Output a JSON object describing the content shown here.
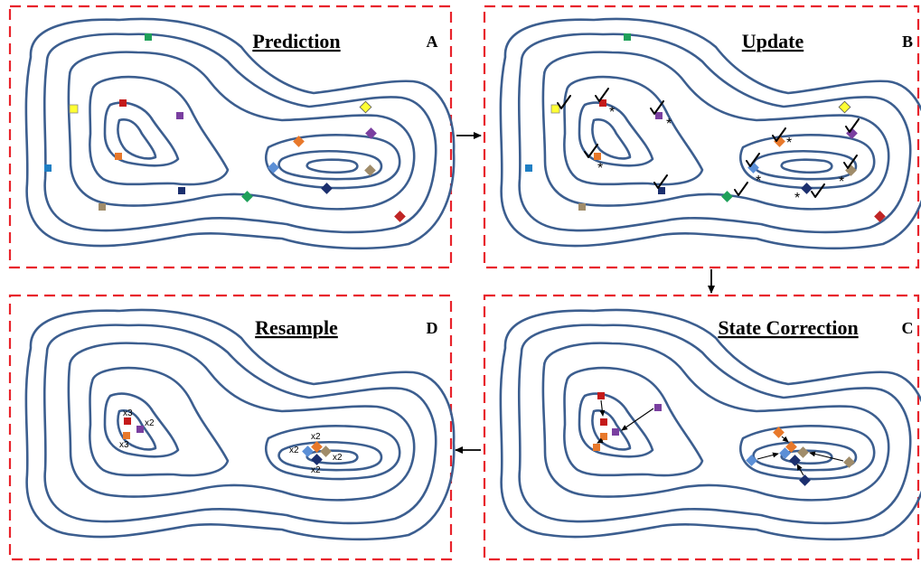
{
  "panels": [
    {
      "id": "A",
      "title": "Prediction",
      "letter": "A"
    },
    {
      "id": "B",
      "title": "Update",
      "letter": "B"
    },
    {
      "id": "C",
      "title": "State Correction",
      "letter": "C"
    },
    {
      "id": "D",
      "title": "Resample",
      "letter": "D"
    }
  ],
  "resample_labels": [
    "x3",
    "x2",
    "x3",
    "x2",
    "x2",
    "x2",
    "x2"
  ],
  "update_mark": "*",
  "colors": {
    "frame": "#e8232b",
    "contour": "#3c5e8f",
    "red": "#c41a1a",
    "yellow": "#ffff33",
    "green": "#1fa05a",
    "purple": "#7a3fa0",
    "orange": "#e8782a",
    "blue": "#1f7fc4",
    "navy": "#1b2f6e",
    "tan": "#a08c6a",
    "lightblue": "#5b8fd6",
    "darkred": "#c02525"
  }
}
